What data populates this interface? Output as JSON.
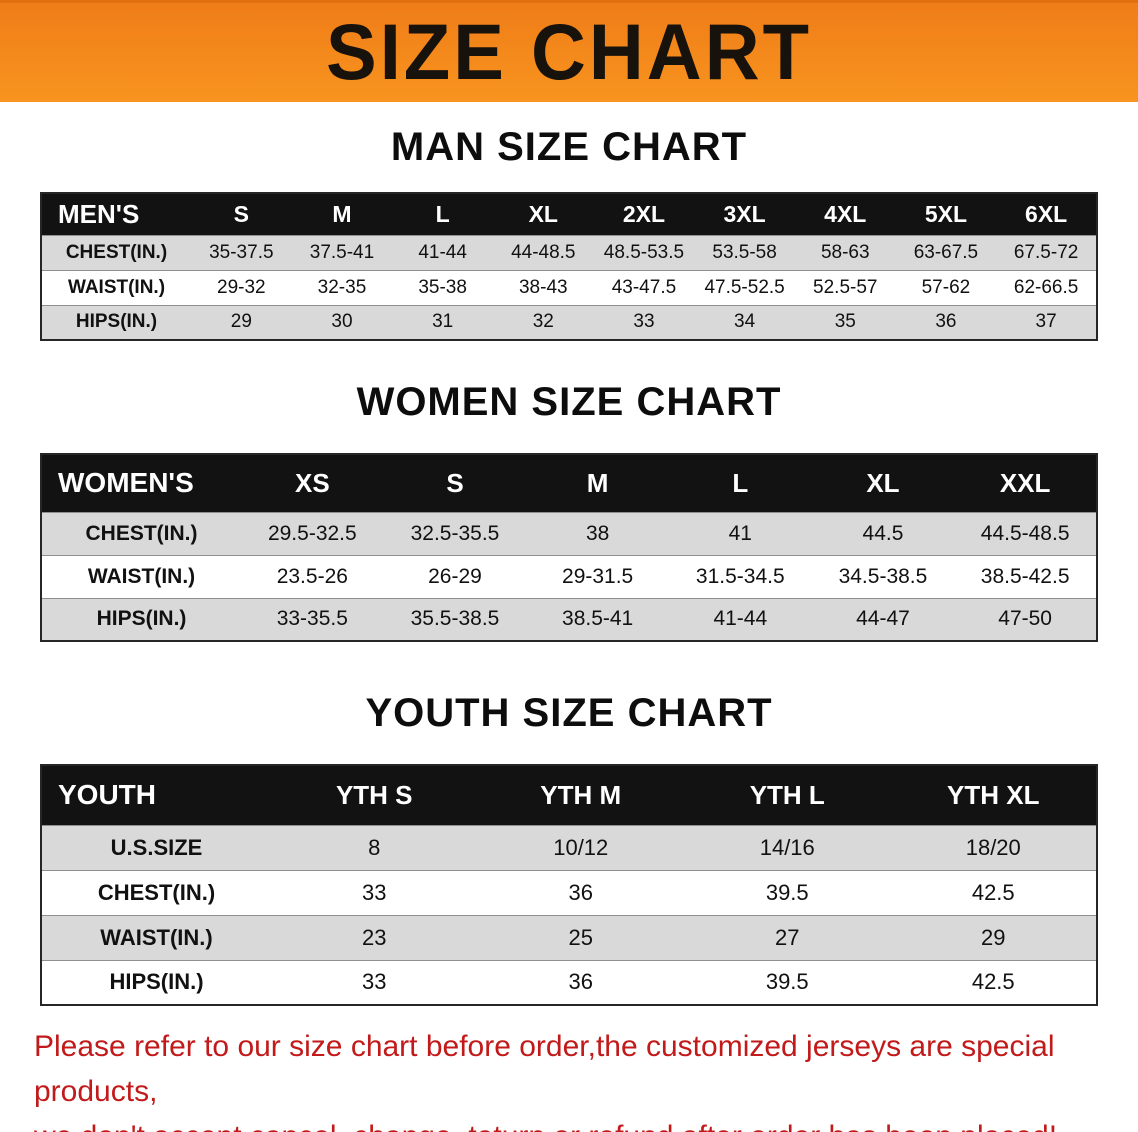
{
  "banner": {
    "title": "SIZE CHART",
    "bg_color": "#f5831d",
    "text_color": "#18120c"
  },
  "sections": [
    {
      "id": "men",
      "heading": "MAN SIZE CHART",
      "table": {
        "header": [
          "MEN'S",
          "S",
          "M",
          "L",
          "XL",
          "2XL",
          "3XL",
          "4XL",
          "5XL",
          "6XL"
        ],
        "rows": [
          {
            "label": "CHEST(IN.)",
            "values": [
              "35-37.5",
              "37.5-41",
              "41-44",
              "44-48.5",
              "48.5-53.5",
              "53.5-58",
              "58-63",
              "63-67.5",
              "67.5-72"
            ]
          },
          {
            "label": "WAIST(IN.)",
            "values": [
              "29-32",
              "32-35",
              "35-38",
              "38-43",
              "43-47.5",
              "47.5-52.5",
              "52.5-57",
              "57-62",
              "62-66.5"
            ]
          },
          {
            "label": "HIPS(IN.)",
            "values": [
              "29",
              "30",
              "31",
              "32",
              "33",
              "34",
              "35",
              "36",
              "37"
            ]
          }
        ]
      }
    },
    {
      "id": "women",
      "heading": "WOMEN SIZE CHART",
      "table": {
        "header": [
          "WOMEN'S",
          "XS",
          "S",
          "M",
          "L",
          "XL",
          "XXL"
        ],
        "rows": [
          {
            "label": "CHEST(IN.)",
            "values": [
              "29.5-32.5",
              "32.5-35.5",
              "38",
              "41",
              "44.5",
              "44.5-48.5"
            ]
          },
          {
            "label": "WAIST(IN.)",
            "values": [
              "23.5-26",
              "26-29",
              "29-31.5",
              "31.5-34.5",
              "34.5-38.5",
              "38.5-42.5"
            ]
          },
          {
            "label": "HIPS(IN.)",
            "values": [
              "33-35.5",
              "35.5-38.5",
              "38.5-41",
              "41-44",
              "44-47",
              "47-50"
            ]
          }
        ]
      }
    },
    {
      "id": "youth",
      "heading": "YOUTH SIZE CHART",
      "table": {
        "header": [
          "YOUTH",
          "YTH S",
          "YTH M",
          "YTH L",
          "YTH XL"
        ],
        "rows": [
          {
            "label": "U.S.SIZE",
            "values": [
              "8",
              "10/12",
              "14/16",
              "18/20"
            ]
          },
          {
            "label": "CHEST(IN.)",
            "values": [
              "33",
              "36",
              "39.5",
              "42.5"
            ]
          },
          {
            "label": "WAIST(IN.)",
            "values": [
              "23",
              "25",
              "27",
              "29"
            ]
          },
          {
            "label": "HIPS(IN.)",
            "values": [
              "33",
              "36",
              "39.5",
              "42.5"
            ]
          }
        ]
      }
    }
  ],
  "footer": {
    "line1": "Please refer to our size chart before order,the customized jerseys are special products,",
    "line2": "we don't accept cancel, change, teturn or refund after order has been placed!",
    "text_color": "#c21a1a"
  },
  "colors": {
    "banner_orange": "#f5831d",
    "table_header_black": "#121212",
    "row_stripe_gray": "#d9d9d9",
    "disclaimer_red": "#c21a1a"
  }
}
